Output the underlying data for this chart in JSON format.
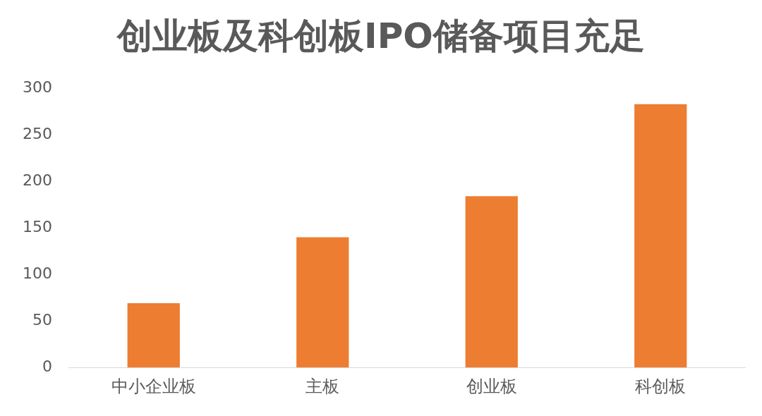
{
  "chart_data": {
    "type": "bar",
    "title": "创业板及科创板IPO储备项目充足",
    "categories": [
      "中小企业板",
      "主板",
      "创业板",
      "科创板"
    ],
    "values": [
      69,
      140,
      184,
      283
    ],
    "color": "#ed7d31",
    "ylim": [
      0,
      300
    ],
    "yticks": [
      0,
      50,
      100,
      150,
      200,
      250,
      300
    ],
    "grid": false,
    "legend": false
  }
}
